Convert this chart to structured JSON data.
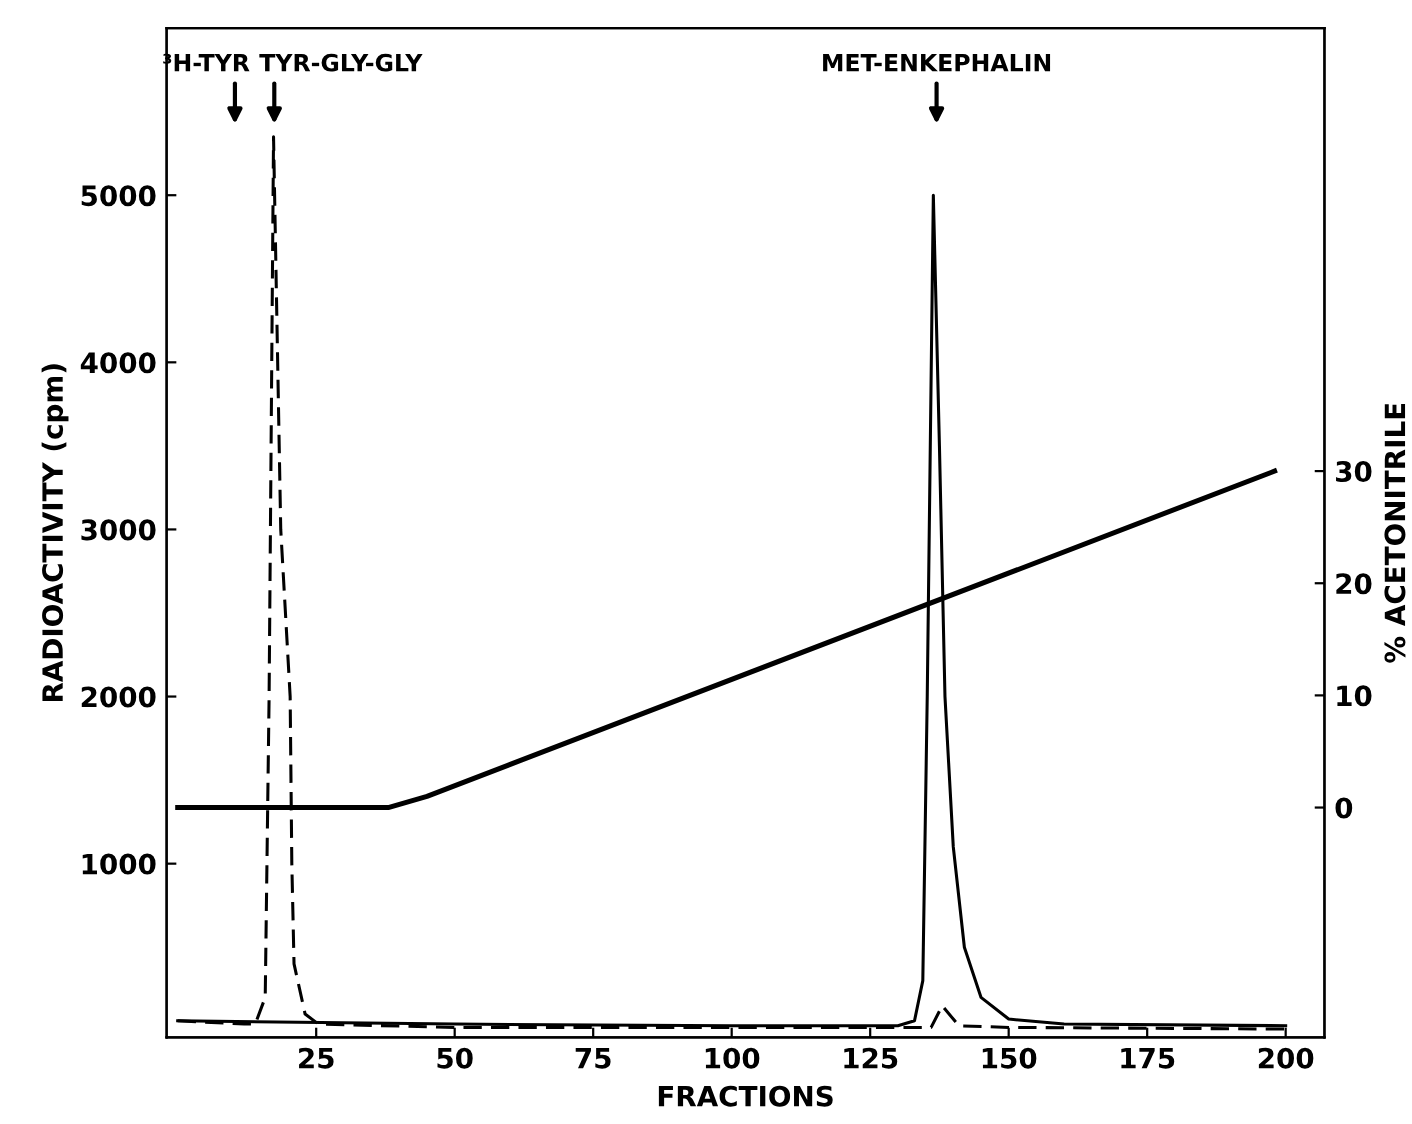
{
  "chart_data": {
    "type": "line",
    "xlabel": "FRACTIONS",
    "ylabel": "RADIOACTIVITY (cpm)",
    "y2label": "% ACETONITRILE",
    "xlim": [
      -2,
      207
    ],
    "xticks": [
      25,
      50,
      75,
      100,
      125,
      150,
      175,
      200
    ],
    "ylim": [
      -40,
      6000
    ],
    "yticks": [
      1000,
      2000,
      3000,
      4000,
      5000
    ],
    "y2lim": [
      -20.5,
      69.5
    ],
    "y2ticks": [
      0,
      10,
      20,
      30
    ],
    "grid": false,
    "legend": false,
    "marker": "none",
    "annotations": [
      "³H-TYR",
      "TYR-GLY-GLY",
      "MET-ENKEPHALIN"
    ],
    "series": [
      {
        "color": "#000000",
        "line_style": "dashed",
        "x": [
          0,
          12,
          14,
          15.8,
          16.5,
          17.3,
          18.6,
          20.3,
          20.6,
          21,
          23,
          25.4,
          50,
          100,
          130,
          136,
          138,
          141,
          150,
          200
        ],
        "values": [
          60,
          40,
          40,
          200,
          2000,
          5350,
          3000,
          2000,
          1000,
          400,
          100,
          40,
          20,
          20,
          20,
          20,
          150,
          30,
          20,
          10
        ]
      },
      {
        "color": "#000000",
        "line_style": "solid",
        "x": [
          0,
          50,
          100,
          130,
          133,
          134.5,
          135.3,
          136.4,
          137.5,
          138.5,
          140,
          142,
          145,
          150,
          160,
          200
        ],
        "values": [
          60,
          40,
          30,
          30,
          60,
          300,
          2000,
          5000,
          3500,
          2000,
          1100,
          500,
          200,
          70,
          40,
          30
        ]
      },
      {
        "color": "#000000",
        "line_style": "solid",
        "axis": "y2",
        "x": [
          0,
          38,
          45,
          198
        ],
        "values": [
          0,
          0,
          1,
          30
        ]
      }
    ]
  }
}
